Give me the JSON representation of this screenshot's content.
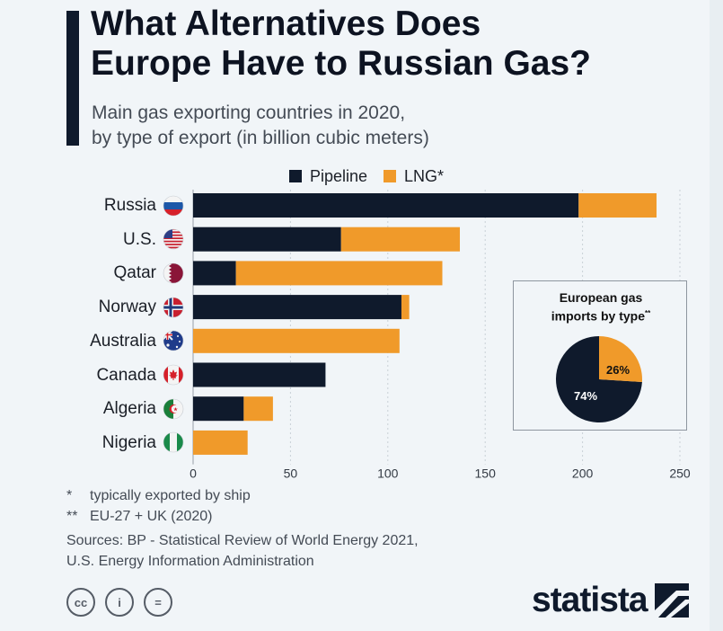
{
  "header": {
    "title_line1": "What Alternatives Does",
    "title_line2": "Europe Have to Russian Gas?",
    "subtitle_line1": "Main gas exporting countries in 2020,",
    "subtitle_line2": "by type of export (in billion cubic meters)"
  },
  "colors": {
    "pipeline": "#0f1a2c",
    "lng": "#f09a2a",
    "accent": "#0f1a2c"
  },
  "chart_data": {
    "type": "bar",
    "orientation": "horizontal",
    "stacked": true,
    "categories": [
      "Russia",
      "U.S.",
      "Qatar",
      "Norway",
      "Australia",
      "Canada",
      "Algeria",
      "Nigeria"
    ],
    "series": [
      {
        "name": "Pipeline",
        "values": [
          198,
          76,
          22,
          107,
          0,
          68,
          26,
          0
        ]
      },
      {
        "name": "LNG*",
        "values": [
          40,
          61,
          106,
          4,
          106,
          0,
          15,
          28
        ]
      }
    ],
    "x_ticks": [
      "0",
      "50",
      "100",
      "150",
      "200",
      "250"
    ],
    "xlim": [
      0,
      250
    ],
    "legend_position": "top",
    "grid": "vertical"
  },
  "flags": [
    "russia-flag-icon",
    "us-flag-icon",
    "qatar-flag-icon",
    "norway-flag-icon",
    "australia-flag-icon",
    "canada-flag-icon",
    "algeria-flag-icon",
    "nigeria-flag-icon"
  ],
  "inset": {
    "title_line1": "European gas",
    "title_line2": "imports by type",
    "title_mark": "**",
    "chart_data": {
      "type": "pie",
      "labels": [
        "Pipeline",
        "LNG"
      ],
      "values": [
        74,
        26
      ],
      "value_labels": [
        "74%",
        "26%"
      ]
    }
  },
  "notes": {
    "note1_mark": "*",
    "note1_text": "typically exported by ship",
    "note2_mark": "**",
    "note2_text": "EU-27 + UK (2020)",
    "sources_line1": "Sources: BP - Statistical Review of World Energy 2021,",
    "sources_line2": "U.S. Energy Information Administration"
  },
  "footer": {
    "license_icons": [
      "cc-icon",
      "by-icon",
      "nd-icon"
    ],
    "license_glyphs": [
      "cc",
      "i",
      "="
    ],
    "brand": "statista"
  }
}
